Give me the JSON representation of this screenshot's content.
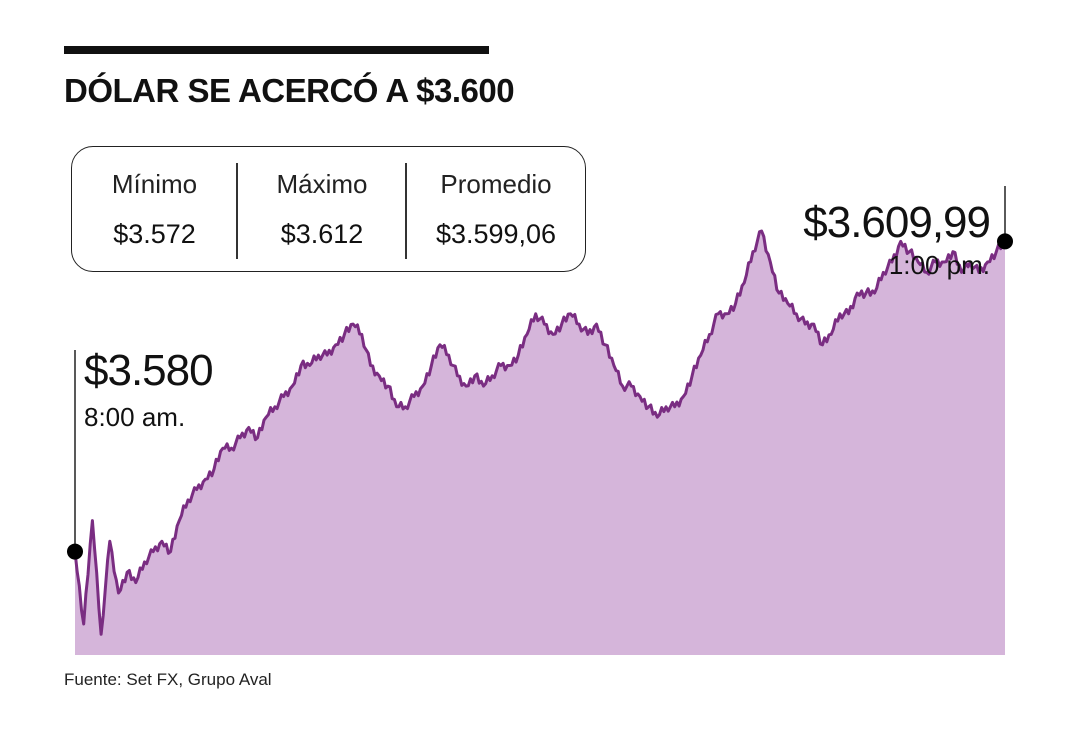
{
  "title": "DÓLAR SE ACERCÓ A $3.600",
  "stats": [
    {
      "label": "Mínimo",
      "value": "$3.572"
    },
    {
      "label": "Máximo",
      "value": "$3.612"
    },
    {
      "label": "Promedio",
      "value": "$3.599,06"
    }
  ],
  "callouts": {
    "open": {
      "value": "$3.580",
      "time": "8:00 am."
    },
    "close": {
      "value": "$3.609,99",
      "time": "1:00 pm."
    }
  },
  "source": "Fuente: Set FX, Grupo Aval",
  "colors": {
    "line": "#7a2d82",
    "area": "#d5b5da",
    "text": "#111111"
  },
  "chart_data": {
    "type": "area",
    "title": "DÓLAR SE ACERCÓ A $3.600",
    "xlabel": "",
    "ylabel": "",
    "x_range": [
      "8:00 am.",
      "1:00 pm."
    ],
    "ylim": [
      3570,
      3614
    ],
    "grid": false,
    "series": [
      {
        "values": [
          3580,
          3573,
          3583,
          3572,
          3581,
          3576,
          3578,
          3577,
          3579,
          3580,
          3581,
          3580,
          3583,
          3585,
          3586,
          3587,
          3588,
          3590,
          3590,
          3591,
          3592,
          3591,
          3593,
          3594,
          3595,
          3596,
          3598,
          3598,
          3599,
          3599,
          3600,
          3601,
          3602,
          3601,
          3598,
          3597,
          3596,
          3594,
          3594,
          3595,
          3596,
          3598,
          3600,
          3599,
          3597,
          3596,
          3597,
          3596,
          3597,
          3598,
          3598,
          3599,
          3601,
          3603,
          3602,
          3601,
          3602,
          3603,
          3602,
          3601,
          3602,
          3600,
          3598,
          3596,
          3596,
          3595,
          3594,
          3593,
          3594,
          3594,
          3595,
          3597,
          3599,
          3601,
          3603,
          3603,
          3604,
          3606,
          3609,
          3611,
          3608,
          3605,
          3604,
          3603,
          3602,
          3602,
          3600,
          3601,
          3603,
          3603,
          3605,
          3605,
          3605,
          3607,
          3608,
          3610,
          3609,
          3608,
          3607,
          3608,
          3608,
          3609,
          3607,
          3608,
          3607,
          3608,
          3609,
          3610
        ]
      }
    ]
  }
}
